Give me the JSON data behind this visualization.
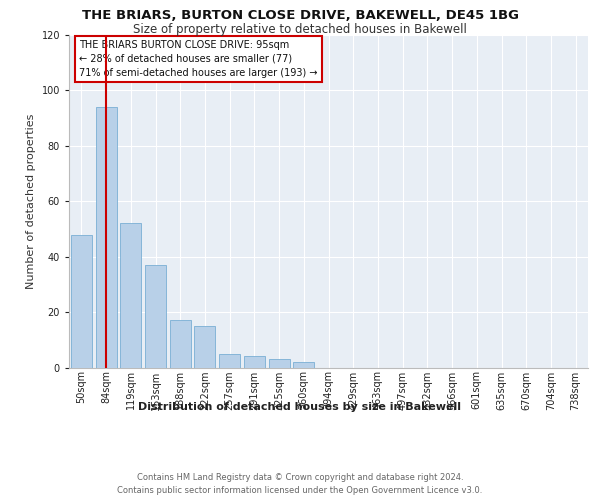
{
  "title": "THE BRIARS, BURTON CLOSE DRIVE, BAKEWELL, DE45 1BG",
  "subtitle": "Size of property relative to detached houses in Bakewell",
  "xlabel": "Distribution of detached houses by size in Bakewell",
  "ylabel": "Number of detached properties",
  "footer_line1": "Contains HM Land Registry data © Crown copyright and database right 2024.",
  "footer_line2": "Contains public sector information licensed under the Open Government Licence v3.0.",
  "bar_labels": [
    "50sqm",
    "84sqm",
    "119sqm",
    "153sqm",
    "188sqm",
    "222sqm",
    "257sqm",
    "291sqm",
    "325sqm",
    "360sqm",
    "394sqm",
    "429sqm",
    "463sqm",
    "497sqm",
    "532sqm",
    "566sqm",
    "601sqm",
    "635sqm",
    "670sqm",
    "704sqm",
    "738sqm"
  ],
  "bar_values": [
    48,
    94,
    52,
    37,
    17,
    15,
    5,
    4,
    3,
    2,
    0,
    0,
    0,
    0,
    0,
    0,
    0,
    0,
    0,
    0,
    0
  ],
  "bar_color": "#b8d0e8",
  "bar_edge_color": "#7aafd4",
  "plot_bg_color": "#e8eef5",
  "grid_color": "#ffffff",
  "red_line_x": 1,
  "ylim": [
    0,
    120
  ],
  "yticks": [
    0,
    20,
    40,
    60,
    80,
    100,
    120
  ],
  "annotation_title": "THE BRIARS BURTON CLOSE DRIVE: 95sqm",
  "annotation_line2": "← 28% of detached houses are smaller (77)",
  "annotation_line3": "71% of semi-detached houses are larger (193) →",
  "annotation_box_color": "#cc0000",
  "title_fontsize": 9.5,
  "subtitle_fontsize": 8.5,
  "tick_fontsize": 7,
  "ylabel_fontsize": 8,
  "xlabel_fontsize": 8,
  "annotation_fontsize": 7,
  "footer_fontsize": 6
}
